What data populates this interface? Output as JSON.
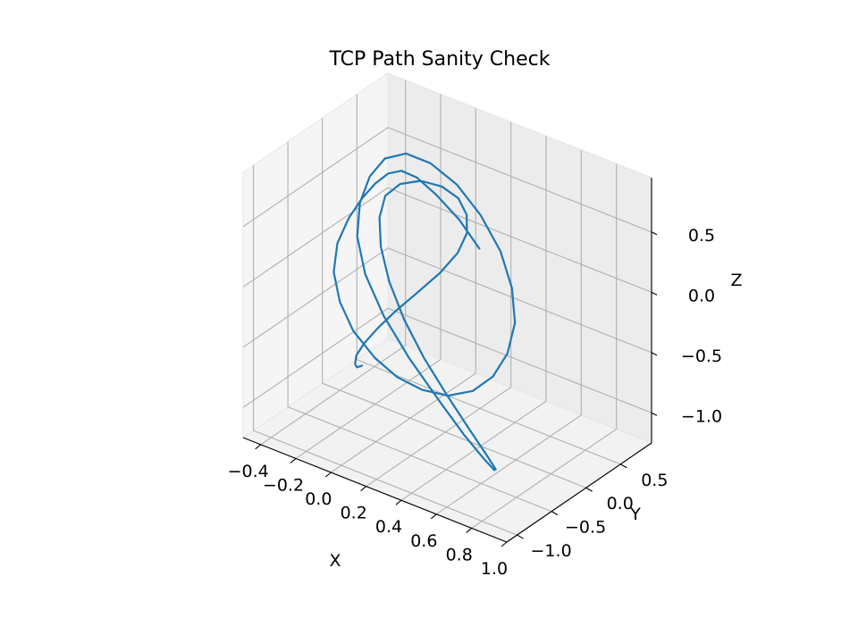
{
  "chart_data": {
    "type": "line",
    "title": "TCP Path Sanity Check",
    "xlabel": "X",
    "ylabel": "Y",
    "zlabel": "Z",
    "grid": true,
    "xlim": [
      -0.5,
      1.0
    ],
    "ylim": [
      -1.15,
      0.95
    ],
    "zlim": [
      -1.25,
      0.95
    ],
    "x_ticks": [
      "−0.4",
      "−0.2",
      "0.0",
      "0.2",
      "0.4",
      "0.6",
      "0.8",
      "1.0"
    ],
    "y_ticks": [
      "−1.0",
      "−0.5",
      "0.0",
      "0.5"
    ],
    "z_ticks": [
      "−1.0",
      "−0.5",
      "0.0",
      "0.5"
    ],
    "series": [
      {
        "color": "#1f77b4",
        "note_points_xyz": "3D trajectory points in data units",
        "x": [
          0.15,
          0.05,
          -0.05,
          -0.12,
          -0.16,
          -0.18,
          -0.2,
          -0.22,
          -0.24,
          -0.25,
          -0.22,
          -0.15,
          -0.05,
          0.08,
          0.2,
          0.32,
          0.43,
          0.52,
          0.58,
          0.6,
          0.58,
          0.5,
          0.38,
          0.22,
          0.05,
          -0.12,
          -0.26,
          -0.36,
          -0.41,
          -0.42,
          -0.38,
          -0.28,
          -0.12,
          0.08,
          0.3,
          0.5,
          0.66,
          0.76,
          0.8,
          0.76,
          0.66,
          0.52,
          0.36,
          0.2,
          0.06,
          -0.05,
          -0.12,
          -0.15,
          -0.12,
          -0.05,
          0.03,
          0.1,
          0.14,
          0.15,
          0.12,
          0.06,
          -0.02,
          -0.09,
          -0.14,
          -0.16,
          -0.15,
          -0.11,
          -0.06,
          0.0
        ],
        "y": [
          0.62,
          0.58,
          0.5,
          0.4,
          0.28,
          0.14,
          0.0,
          -0.14,
          -0.28,
          -0.42,
          -0.55,
          -0.64,
          -0.7,
          -0.72,
          -0.7,
          -0.64,
          -0.55,
          -0.42,
          -0.28,
          -0.12,
          0.04,
          0.2,
          0.34,
          0.46,
          0.55,
          0.6,
          0.6,
          0.55,
          0.46,
          0.34,
          0.2,
          0.06,
          -0.08,
          -0.22,
          -0.36,
          -0.5,
          -0.62,
          -0.72,
          -0.8,
          -0.84,
          -0.84,
          -0.8,
          -0.72,
          -0.6,
          -0.46,
          -0.3,
          -0.14,
          0.02,
          0.16,
          0.28,
          0.38,
          0.44,
          0.46,
          0.44,
          0.38,
          0.28,
          0.16,
          0.02,
          -0.12,
          -0.26,
          -0.4,
          -0.52,
          -0.62,
          -0.7
        ],
        "z": [
          0.0,
          0.2,
          0.38,
          0.52,
          0.6,
          0.62,
          0.58,
          0.5,
          0.38,
          0.22,
          0.05,
          -0.12,
          -0.28,
          -0.42,
          -0.52,
          -0.58,
          -0.6,
          -0.56,
          -0.46,
          -0.32,
          -0.14,
          0.04,
          0.22,
          0.38,
          0.5,
          0.56,
          0.56,
          0.48,
          0.34,
          0.16,
          -0.04,
          -0.24,
          -0.44,
          -0.62,
          -0.78,
          -0.9,
          -0.96,
          -0.96,
          -0.9,
          -0.78,
          -0.62,
          -0.44,
          -0.26,
          -0.08,
          0.1,
          0.26,
          0.4,
          0.5,
          0.56,
          0.58,
          0.54,
          0.46,
          0.34,
          0.2,
          0.04,
          -0.12,
          -0.28,
          -0.42,
          -0.54,
          -0.62,
          -0.66,
          -0.66,
          -0.62,
          -0.54
        ]
      }
    ]
  }
}
